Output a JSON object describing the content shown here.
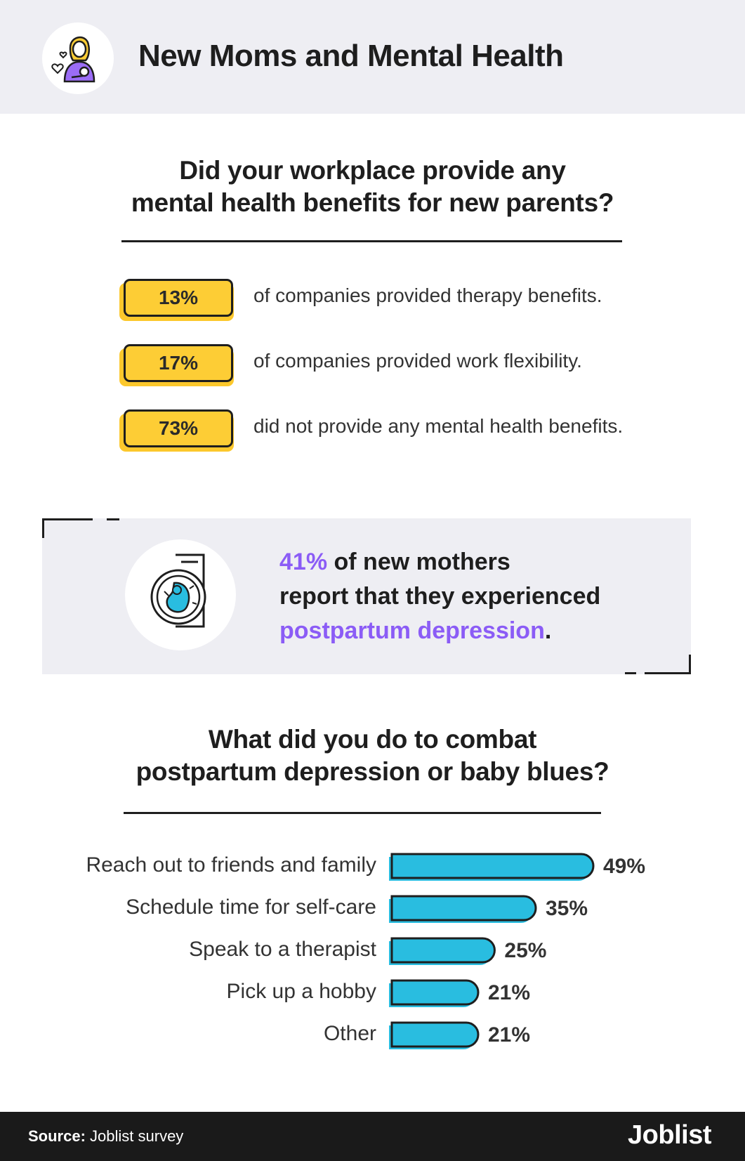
{
  "header": {
    "title": "New Moms and Mental Health",
    "icon": "mother-baby-icon"
  },
  "section1": {
    "question_line1": "Did your workplace provide any",
    "question_line2": "mental health benefits for new parents?",
    "stats": [
      {
        "value": "13%",
        "text": "of companies provided therapy benefits."
      },
      {
        "value": "17%",
        "text": "of companies provided work flexibility."
      },
      {
        "value": "73%",
        "text": "did not provide any mental health benefits."
      }
    ],
    "pill_color": "#fdcd35"
  },
  "callout": {
    "icon": "ultrasound-icon",
    "highlight": "41%",
    "line1_rest": " of new mothers",
    "line2": "report that they experienced",
    "line3_highlight": "postpartum depression",
    "line3_end": ".",
    "accent_color": "#8b5cf6"
  },
  "section2": {
    "question_line1": "What did you do to combat",
    "question_line2": "postpartum depression or baby blues?"
  },
  "chart_data": {
    "type": "bar",
    "orientation": "horizontal",
    "categories": [
      "Reach out to friends and family",
      "Schedule time for self-care",
      "Speak to a therapist",
      "Pick up a hobby",
      "Other"
    ],
    "values": [
      49,
      35,
      25,
      21,
      21
    ],
    "value_labels": [
      "49%",
      "35%",
      "25%",
      "21%",
      "21%"
    ],
    "bar_color": "#29bde0",
    "grid": false
  },
  "footer": {
    "source_label": "Source:",
    "source_text": " Joblist survey",
    "brand": "Joblist"
  }
}
